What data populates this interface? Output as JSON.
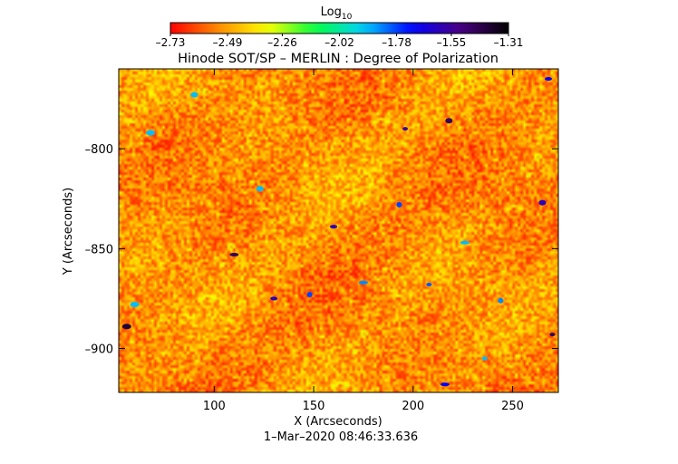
{
  "chart_data": {
    "type": "heatmap",
    "title": "Hinode SOT/SP – MERLIN : Degree of Polarization",
    "xlabel": "X (Arcseconds)",
    "ylabel": "Y (Arcseconds)",
    "timestamp": "1–Mar–2020 08:46:33.636",
    "xlim": [
      52,
      273
    ],
    "ylim": [
      -922,
      -760
    ],
    "x_ticks": [
      100,
      150,
      200,
      250
    ],
    "y_ticks": [
      -800,
      -850,
      -900
    ],
    "x_tick_labels": [
      "100",
      "150",
      "200",
      "250"
    ],
    "y_tick_labels": [
      "–800",
      "–850",
      "–900"
    ],
    "colorbar": {
      "label_base": "Log",
      "label_sub": "10",
      "range": [
        -2.73,
        -1.31
      ],
      "tick_values": [
        -2.73,
        -2.49,
        -2.26,
        -2.02,
        -1.78,
        -1.55,
        -1.31
      ],
      "tick_labels": [
        "–2.73",
        "–2.49",
        "–2.26",
        "–2.02",
        "–1.78",
        "–1.55",
        "–1.31"
      ],
      "colors": [
        "#ff0000",
        "#ff8c00",
        "#ffff00",
        "#00ff40",
        "#00d0ff",
        "#0000ff",
        "#4b0082",
        "#000000"
      ]
    },
    "background_range": [
      -2.73,
      -2.3
    ],
    "features": [
      {
        "x": 196,
        "y": -790,
        "value": -1.55
      },
      {
        "x": 218,
        "y": -786,
        "value": -1.45
      },
      {
        "x": 110,
        "y": -853,
        "value": -1.45
      },
      {
        "x": 148,
        "y": -873,
        "value": -1.78
      },
      {
        "x": 160,
        "y": -839,
        "value": -1.6
      },
      {
        "x": 56,
        "y": -889,
        "value": -1.4
      },
      {
        "x": 270,
        "y": -893,
        "value": -1.45
      },
      {
        "x": 265,
        "y": -827,
        "value": -1.6
      },
      {
        "x": 216,
        "y": -918,
        "value": -1.7
      },
      {
        "x": 193,
        "y": -828,
        "value": -1.78
      },
      {
        "x": 130,
        "y": -875,
        "value": -1.6
      },
      {
        "x": 60,
        "y": -878,
        "value": -1.9
      },
      {
        "x": 236,
        "y": -905,
        "value": -1.9
      },
      {
        "x": 123,
        "y": -820,
        "value": -1.9
      },
      {
        "x": 175,
        "y": -867,
        "value": -1.85
      },
      {
        "x": 244,
        "y": -876,
        "value": -1.85
      },
      {
        "x": 268,
        "y": -765,
        "value": -1.7
      },
      {
        "x": 68,
        "y": -792,
        "value": -1.9
      },
      {
        "x": 208,
        "y": -868,
        "value": -1.8
      },
      {
        "x": 90,
        "y": -773,
        "value": -1.9
      },
      {
        "x": 226,
        "y": -847,
        "value": -1.9
      }
    ]
  }
}
